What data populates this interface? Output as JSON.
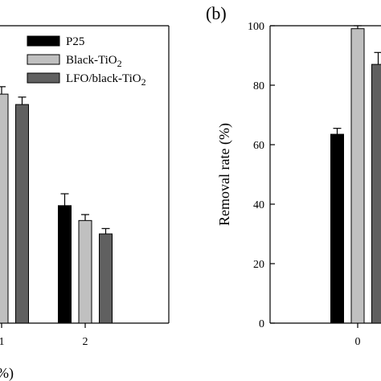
{
  "chart_data": [
    {
      "panel": "a",
      "type": "bar",
      "categories": [
        "1",
        "2"
      ],
      "series": [
        {
          "name": "P25",
          "values": [
            null,
            39.5
          ],
          "errors": [
            null,
            4.0
          ],
          "color": "#000000"
        },
        {
          "name": "Black-TiO2",
          "values": [
            77.0,
            34.5
          ],
          "errors": [
            2.5,
            2.0
          ],
          "color": "#c0c0c0"
        },
        {
          "name": "LFO/black-TiO2",
          "values": [
            73.5,
            30.0
          ],
          "errors": [
            2.5,
            1.8
          ],
          "color": "#606060"
        }
      ],
      "legend": {
        "entries": [
          {
            "label": "P25",
            "sub": "",
            "color": "#000000"
          },
          {
            "label": "Black-TiO",
            "sub": "2",
            "color": "#c0c0c0"
          },
          {
            "label": "LFO/black-TiO",
            "sub": "2",
            "color": "#606060"
          }
        ],
        "placement": "top-right"
      },
      "xlabel_fragment": "%)",
      "ylim": [
        0,
        100
      ],
      "grid": false
    },
    {
      "panel": "b",
      "type": "bar",
      "panel_label": "(b)",
      "ylabel": "Removal rate (%)",
      "y_ticks": [
        "0",
        "20",
        "40",
        "60",
        "80",
        "100"
      ],
      "categories": [
        "0"
      ],
      "series": [
        {
          "name": "P25",
          "values": [
            63.5
          ],
          "errors": [
            2.0
          ],
          "color": "#000000"
        },
        {
          "name": "Black-TiO2",
          "values": [
            99.0
          ],
          "errors": [
            1.0
          ],
          "color": "#c0c0c0"
        },
        {
          "name": "LFO/black-TiO2",
          "values": [
            87.0
          ],
          "errors": [
            4.0
          ],
          "color": "#606060"
        }
      ],
      "ylim": [
        0,
        100
      ],
      "grid": false
    }
  ]
}
